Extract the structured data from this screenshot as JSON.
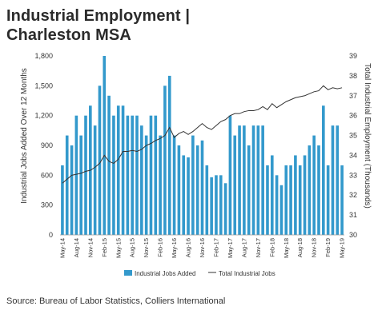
{
  "title_line1": "Industrial Employment |",
  "title_line2": "Charleston MSA",
  "source": "Source: Bureau of Labor Statistics, Colliers International",
  "colors": {
    "bar": "#3399cc",
    "line": "#333333"
  },
  "chart_data": {
    "type": "bar+line",
    "y_left_label": "Industrial Jobs Added Over 12 Months",
    "y_right_label": "Total Industrial Employment  (Thousands)",
    "y_left_ticks": [
      "0",
      "300",
      "600",
      "900",
      "1,200",
      "1,500",
      "1,800"
    ],
    "y_left_lim": [
      0,
      1800
    ],
    "y_right_ticks": [
      "30",
      "31",
      "32",
      "33",
      "34",
      "35",
      "36",
      "37",
      "38",
      "39"
    ],
    "y_right_lim": [
      30,
      39
    ],
    "x_tick_labels": [
      "May-14",
      "Aug-14",
      "Nov-14",
      "Feb-15",
      "May-15",
      "Aug-15",
      "Nov-15",
      "Feb-16",
      "May-16",
      "Aug-16",
      "Nov-16",
      "Feb-17",
      "May-17",
      "Aug-17",
      "Nov-17",
      "Feb-18",
      "May-18",
      "Aug-18",
      "Nov-18",
      "Feb-19",
      "May-19"
    ],
    "series": [
      {
        "name": "Industrial Jobs Added",
        "kind": "bar",
        "values": [
          700,
          1000,
          900,
          1200,
          1000,
          1200,
          1300,
          1100,
          1500,
          1800,
          1400,
          1200,
          1300,
          1300,
          1200,
          1200,
          1200,
          1100,
          1000,
          1200,
          1200,
          1000,
          1500,
          1600,
          1000,
          900,
          800,
          780,
          1000,
          900,
          950,
          700,
          580,
          600,
          600,
          520,
          1200,
          1000,
          1100,
          1100,
          900,
          1100,
          1100,
          1100,
          700,
          800,
          600,
          500,
          700,
          700,
          800,
          700,
          800,
          900,
          1000,
          900,
          1300,
          700,
          1100,
          1100,
          700
        ]
      },
      {
        "name": "Total Industrial Jobs",
        "kind": "line",
        "values": [
          32.6,
          32.8,
          33.0,
          33.05,
          33.1,
          33.2,
          33.25,
          33.4,
          33.6,
          34.0,
          33.7,
          33.6,
          33.8,
          34.2,
          34.2,
          34.25,
          34.2,
          34.3,
          34.5,
          34.6,
          34.75,
          34.85,
          35.0,
          35.4,
          34.9,
          35.1,
          35.2,
          35.05,
          35.2,
          35.4,
          35.6,
          35.4,
          35.3,
          35.5,
          35.7,
          35.8,
          36.0,
          36.1,
          36.1,
          36.2,
          36.25,
          36.25,
          36.3,
          36.45,
          36.3,
          36.6,
          36.4,
          36.55,
          36.7,
          36.8,
          36.9,
          36.95,
          37.0,
          37.1,
          37.2,
          37.25,
          37.5,
          37.3,
          37.4,
          37.35,
          37.4
        ]
      }
    ],
    "legend_position": "bottom"
  }
}
